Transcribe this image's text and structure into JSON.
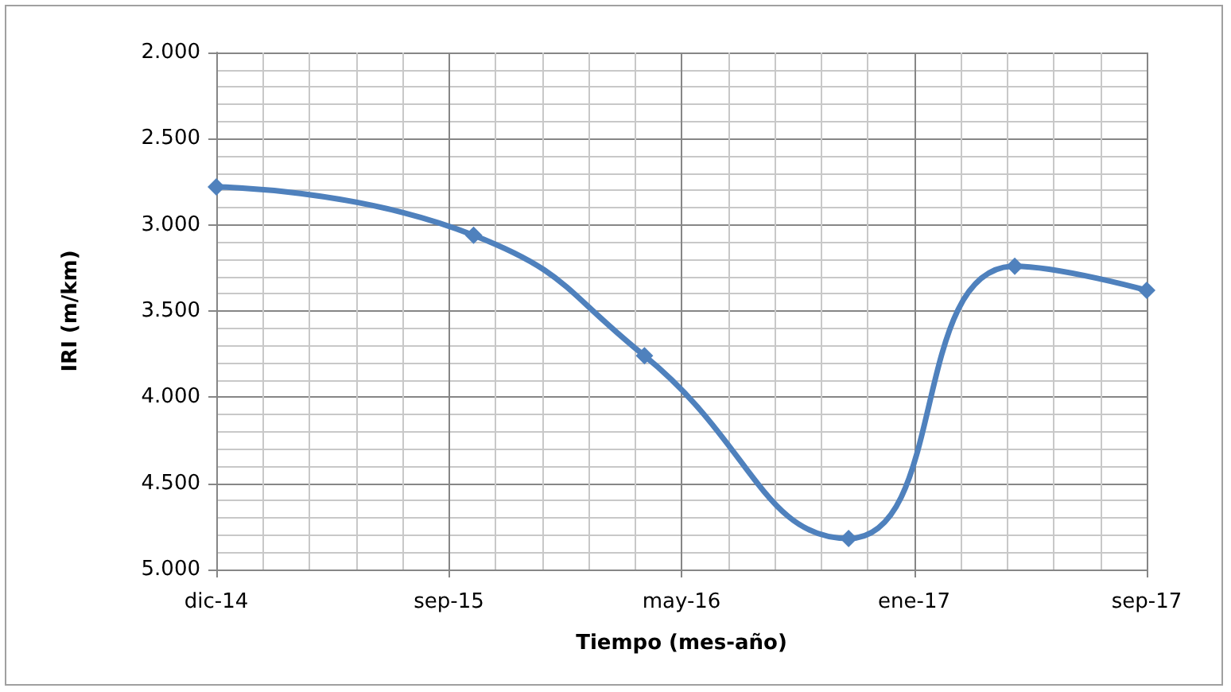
{
  "chart_data": {
    "type": "line",
    "xlabel": "Tiempo (mes-año)",
    "ylabel": "IRI (m/km)",
    "x": [
      "2014-12-31",
      "2015-09-28",
      "2016-03-26",
      "2016-10-27",
      "2017-04-20",
      "2017-09-06"
    ],
    "series": [
      {
        "color": "#4f81bd",
        "values": [
          2.78,
          3.06,
          3.76,
          4.82,
          3.24,
          3.38
        ]
      }
    ],
    "xlim": [
      "2014-12-31",
      "2017-09-06"
    ],
    "xticks": [
      {
        "value": "2014-12-31",
        "label": "dic-14"
      },
      {
        "value": "2015-09-02",
        "label": "sep-15"
      },
      {
        "value": "2016-05-04",
        "label": "may-16"
      },
      {
        "value": "2017-01-04",
        "label": "ene-17"
      },
      {
        "value": "2017-09-06",
        "label": "sep-17"
      }
    ],
    "ylim": [
      5,
      2
    ],
    "yticks": [
      {
        "value": 2,
        "label": "2.000"
      },
      {
        "value": 2.5,
        "label": "2.500"
      },
      {
        "value": 3,
        "label": "3.000"
      },
      {
        "value": 3.5,
        "label": "3.500"
      },
      {
        "value": 4,
        "label": "4.000"
      },
      {
        "value": 4.5,
        "label": "4.500"
      },
      {
        "value": 5,
        "label": "5.000"
      }
    ],
    "grid": true,
    "marker": "diamond",
    "line_style": "solid"
  }
}
